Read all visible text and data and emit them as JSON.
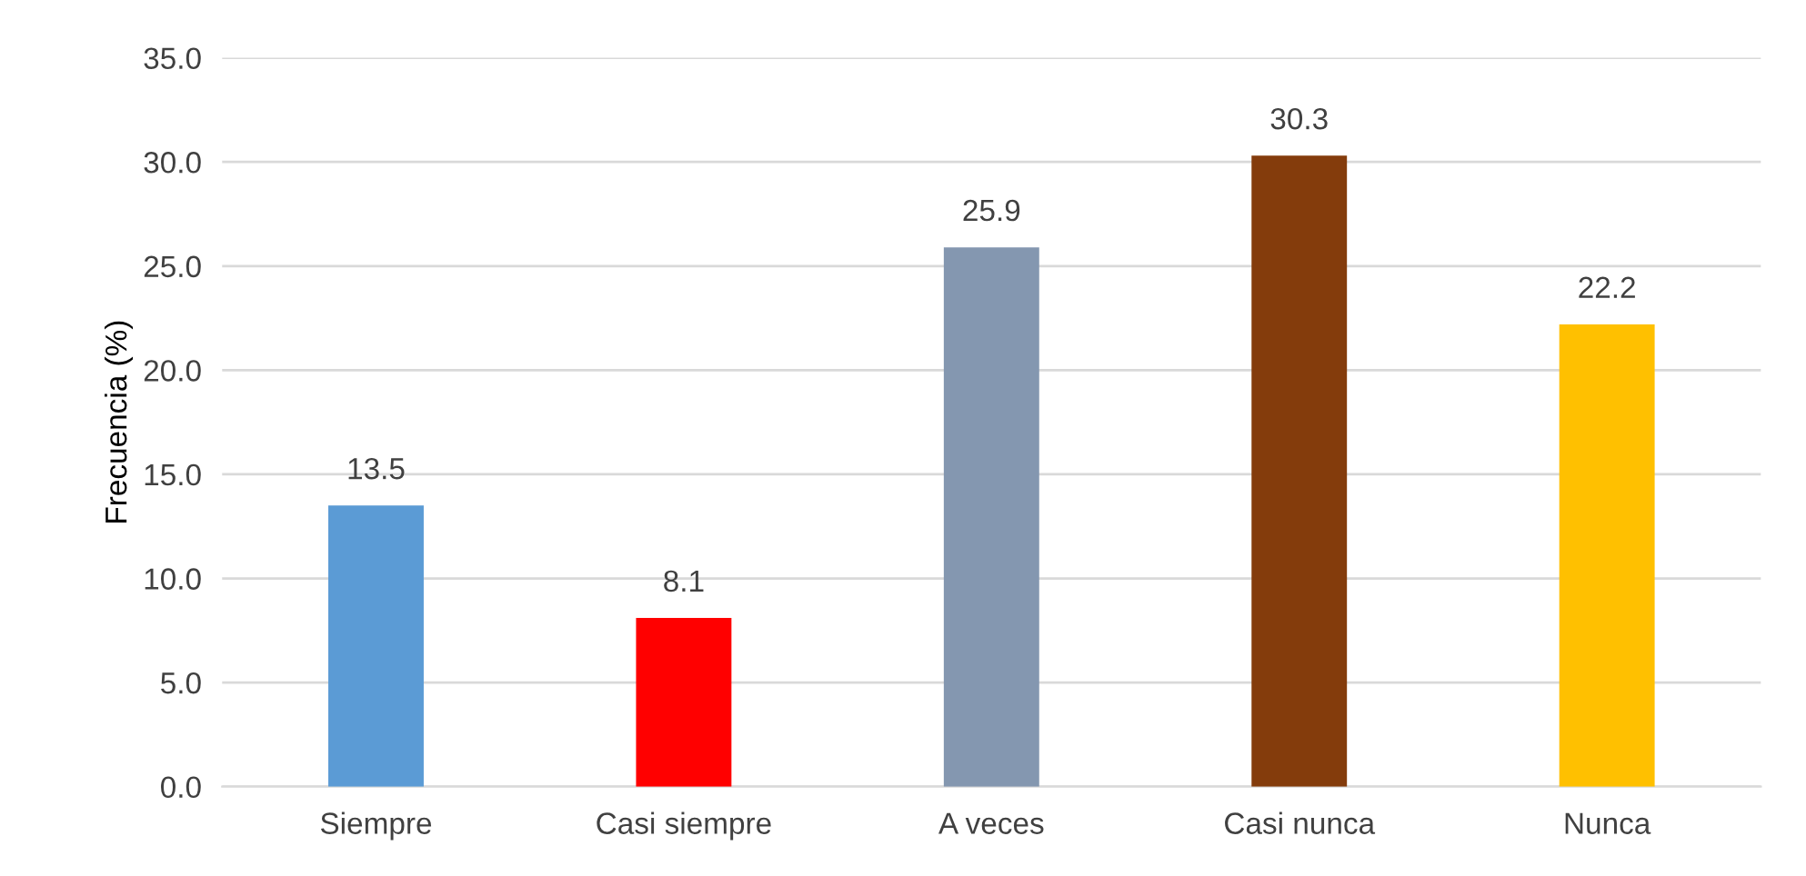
{
  "chart_data": {
    "type": "bar",
    "ylabel": "Frecuencia (%)",
    "categories": [
      "Siempre",
      "Casi siempre",
      "A veces",
      "Casi nunca",
      "Nunca"
    ],
    "values": [
      13.5,
      8.1,
      25.9,
      30.3,
      22.2
    ],
    "colors": [
      "#5b9bd5",
      "#ff0000",
      "#8497b0",
      "#843c0c",
      "#ffc000"
    ],
    "ylim": [
      0,
      35
    ],
    "yticks": [
      {
        "value": 0,
        "label": "0.0"
      },
      {
        "value": 5,
        "label": "5.0"
      },
      {
        "value": 10,
        "label": "10.0"
      },
      {
        "value": 15,
        "label": "15.0"
      },
      {
        "value": 20,
        "label": "20.0"
      },
      {
        "value": 25,
        "label": "25.0"
      },
      {
        "value": 30,
        "label": "30.0"
      },
      {
        "value": 35,
        "label": "35.0"
      }
    ],
    "grid": "y",
    "data_labels": true,
    "legend": false
  }
}
